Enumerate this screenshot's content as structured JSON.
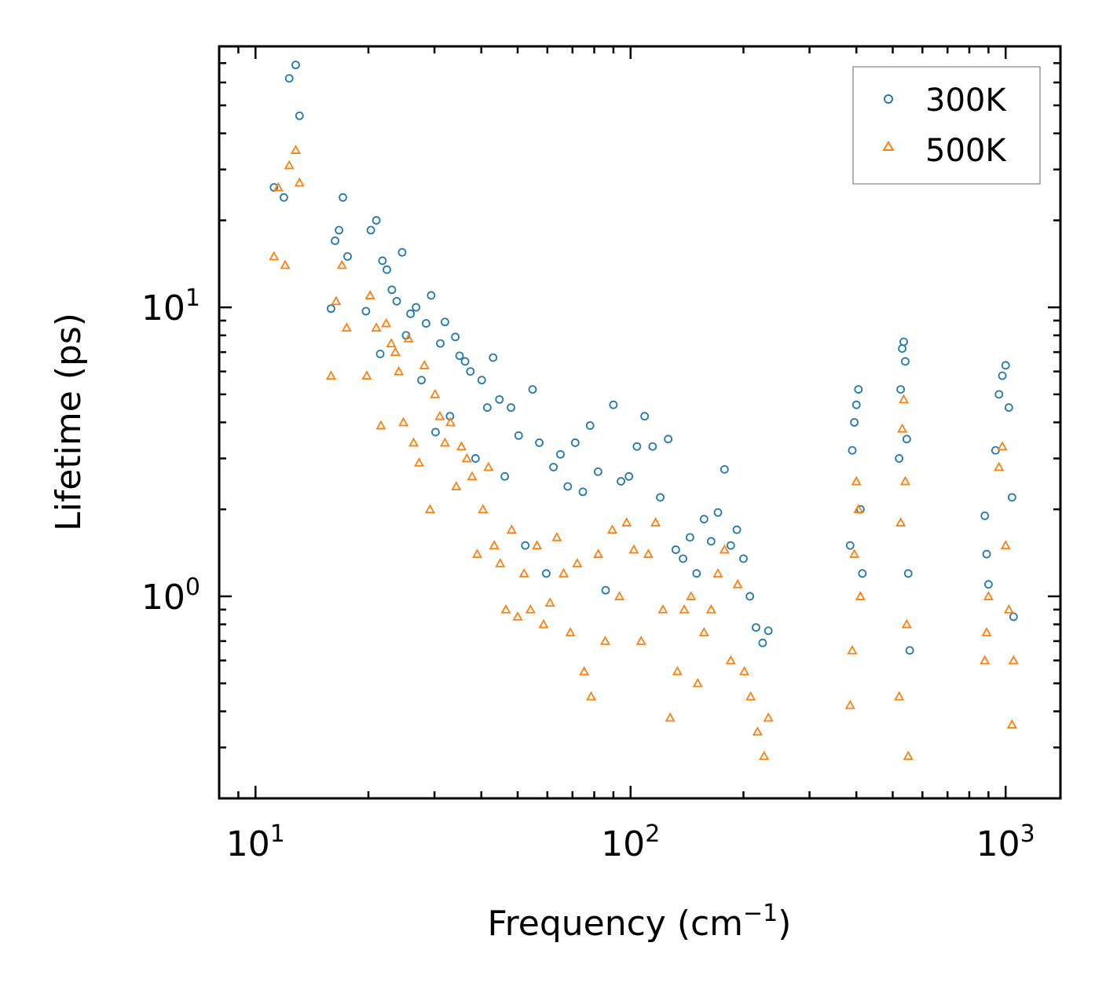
{
  "chart_data": {
    "type": "scatter",
    "title": "",
    "xlabel": "Frequency (cm",
    "xlabel_sup": "−1",
    "xlabel_suffix": ")",
    "ylabel": "Lifetime (ps)",
    "xscale": "log",
    "yscale": "log",
    "xlim": [
      8,
      1400
    ],
    "ylim": [
      0.2,
      80
    ],
    "xticks": [
      {
        "value": 10,
        "base": "10",
        "exp": "1"
      },
      {
        "value": 100,
        "base": "10",
        "exp": "2"
      },
      {
        "value": 1000,
        "base": "10",
        "exp": "3"
      }
    ],
    "yticks": [
      {
        "value": 1,
        "base": "10",
        "exp": "0"
      },
      {
        "value": 10,
        "base": "10",
        "exp": "1"
      }
    ],
    "legend_position": "top-right",
    "series": [
      {
        "name": "300K",
        "marker": "circle",
        "color": "#1f77b4",
        "x": [
          11.2,
          11.9,
          12.3,
          12.8,
          13.1,
          15.9,
          16.3,
          16.7,
          17.1,
          17.6,
          19.7,
          20.3,
          21.0,
          21.5,
          21.8,
          22.4,
          23.1,
          23.8,
          24.6,
          25.2,
          25.9,
          26.8,
          27.7,
          28.5,
          29.4,
          30.2,
          31.1,
          32.0,
          33.0,
          34.1,
          35.0,
          36.2,
          37.4,
          38.6,
          40.1,
          41.5,
          43.0,
          44.7,
          46.2,
          48.0,
          50.3,
          52.4,
          54.8,
          57.1,
          59.6,
          62.3,
          65.0,
          68.0,
          71.2,
          74.6,
          78.0,
          81.9,
          85.8,
          90.0,
          94.3,
          99.0,
          104.0,
          109.0,
          114.5,
          120.0,
          126.0,
          132.0,
          138.0,
          144.0,
          150.0,
          157.0,
          164.0,
          171.0,
          178.0,
          185.0,
          192.0,
          200.0,
          208.0,
          216.0,
          225.0,
          233.0,
          385.0,
          390.0,
          395.0,
          400.0,
          405.0,
          410.0,
          415.0,
          520.0,
          525.0,
          530.0,
          535.0,
          540.0,
          545.0,
          550.0,
          555.0,
          880.0,
          890.0,
          900.0,
          940.0,
          960.0,
          980.0,
          1000.0,
          1020.0,
          1040.0,
          1050.0
        ],
        "y": [
          26.0,
          24.0,
          62.0,
          69.0,
          46.0,
          9.9,
          17.0,
          18.5,
          24.0,
          15.0,
          9.7,
          18.5,
          20.0,
          6.9,
          14.5,
          13.5,
          11.5,
          10.5,
          15.5,
          8.0,
          9.5,
          10.0,
          5.6,
          8.8,
          11.0,
          3.7,
          7.5,
          8.9,
          4.2,
          7.9,
          6.8,
          6.5,
          6.0,
          3.0,
          5.6,
          4.5,
          6.7,
          4.8,
          2.6,
          4.5,
          3.6,
          1.5,
          5.2,
          3.4,
          1.2,
          2.8,
          3.1,
          2.4,
          3.4,
          2.3,
          3.9,
          2.7,
          1.05,
          4.6,
          2.5,
          2.6,
          3.3,
          4.2,
          3.3,
          2.2,
          3.5,
          1.45,
          1.35,
          1.6,
          1.2,
          1.85,
          1.55,
          1.95,
          2.75,
          1.5,
          1.7,
          1.35,
          1.0,
          0.78,
          0.69,
          0.76,
          1.5,
          3.2,
          4.0,
          4.6,
          5.2,
          2.0,
          1.2,
          3.0,
          5.2,
          7.2,
          7.6,
          6.5,
          3.5,
          1.2,
          0.65,
          1.9,
          1.4,
          1.1,
          3.2,
          5.0,
          5.8,
          6.3,
          4.5,
          2.2,
          0.85
        ]
      },
      {
        "name": "500K",
        "marker": "triangle",
        "color": "#ff7f0e",
        "x": [
          11.2,
          11.5,
          12.0,
          12.3,
          12.8,
          13.1,
          15.9,
          16.4,
          17.0,
          17.5,
          19.8,
          20.2,
          21.0,
          21.6,
          22.3,
          23.0,
          23.6,
          24.1,
          24.8,
          25.6,
          26.4,
          27.3,
          28.2,
          29.2,
          30.1,
          31.0,
          32.0,
          33.1,
          34.3,
          35.4,
          36.6,
          37.8,
          39.0,
          40.4,
          41.8,
          43.3,
          44.9,
          46.5,
          48.2,
          50.0,
          52.0,
          54.1,
          56.3,
          58.6,
          61.0,
          63.6,
          66.3,
          69.1,
          72.1,
          75.2,
          78.5,
          82.0,
          85.6,
          89.4,
          93.4,
          97.6,
          102.0,
          106.7,
          111.5,
          116.6,
          122.0,
          127.5,
          133.3,
          139.0,
          145.0,
          151.0,
          157.0,
          164.0,
          171.0,
          178.0,
          185.0,
          193.0,
          201.0,
          209.0,
          218.0,
          227.0,
          233.0,
          385.0,
          390.0,
          395.0,
          400.0,
          405.0,
          410.0,
          520.0,
          525.0,
          530.0,
          535.0,
          540.0,
          545.0,
          550.0,
          880.0,
          890.0,
          900.0,
          960.0,
          980.0,
          1000.0,
          1020.0,
          1040.0,
          1050.0
        ],
        "y": [
          15.0,
          26.0,
          14.0,
          31.0,
          35.0,
          27.0,
          5.8,
          10.5,
          14.0,
          8.5,
          5.8,
          11.0,
          8.5,
          3.9,
          8.8,
          7.5,
          7.0,
          6.0,
          4.0,
          7.8,
          3.4,
          2.9,
          6.3,
          2.0,
          5.0,
          4.2,
          3.4,
          4.0,
          2.4,
          3.3,
          3.0,
          2.6,
          1.4,
          2.0,
          2.8,
          1.5,
          1.3,
          0.9,
          1.7,
          0.85,
          1.2,
          0.9,
          1.5,
          0.8,
          0.95,
          1.6,
          1.2,
          0.75,
          1.3,
          0.55,
          0.45,
          1.4,
          0.7,
          1.7,
          1.0,
          1.8,
          1.45,
          0.7,
          1.4,
          1.8,
          0.9,
          0.38,
          0.55,
          0.9,
          1.0,
          0.5,
          0.75,
          0.9,
          1.2,
          1.45,
          0.6,
          1.1,
          0.55,
          0.45,
          0.34,
          0.28,
          0.38,
          0.42,
          0.65,
          1.4,
          2.5,
          2.0,
          1.0,
          0.45,
          1.8,
          3.8,
          4.8,
          2.5,
          0.8,
          0.28,
          0.6,
          0.75,
          1.0,
          2.8,
          3.3,
          1.5,
          0.9,
          0.36,
          0.6
        ]
      }
    ]
  }
}
